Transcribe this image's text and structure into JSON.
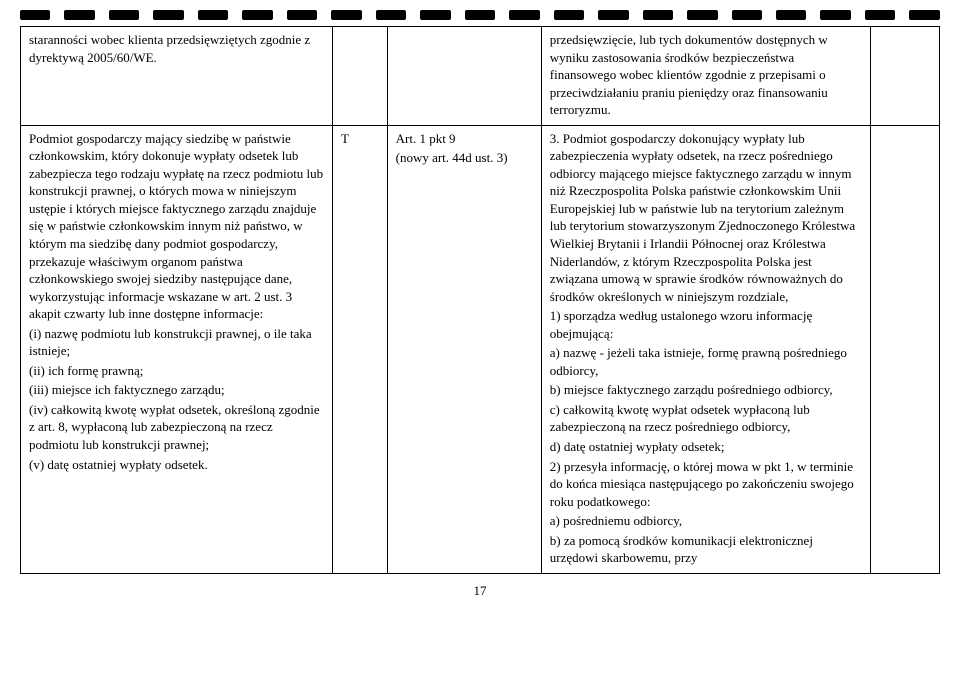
{
  "perforation_count": 21,
  "page_number": "17",
  "table": {
    "rows": [
      {
        "colA": "staranności wobec klienta przedsięwziętych zgodnie z dyrektywą 2005/60/WE.",
        "colB": "",
        "colC": "",
        "colD": "przedsięwzięcie, lub tych dokumentów dostępnych w wyniku zastosowania środków bezpieczeństwa finansowego wobec klientów zgodnie z przepisami o przeciwdziałaniu praniu pieniędzy oraz finansowaniu terroryzmu.",
        "colE": ""
      },
      {
        "colA": "Podmiot gospodarczy mający siedzibę w państwie członkowskim, który dokonuje wypłaty odsetek lub zabezpiecza tego rodzaju wypłatę na rzecz podmiotu lub konstrukcji prawnej, o których mowa w niniejszym ustępie i których miejsce faktycznego zarządu znajduje się w państwie członkowskim innym niż państwo, w którym ma siedzibę dany podmiot gospodarczy, przekazuje właściwym organom państwa członkowskiego swojej siedziby następujące dane, wykorzystując informacje wskazane w art. 2 ust. 3 akapit czwarty lub inne dostępne informacje:\n(i) nazwę podmiotu lub konstrukcji prawnej, o ile taka istnieje;\n(ii) ich formę prawną;\n(iii) miejsce ich faktycznego zarządu;\n(iv) całkowitą kwotę wypłat odsetek, określoną zgodnie z art. 8, wypłaconą lub zabezpieczoną na rzecz podmiotu lub konstrukcji prawnej;\n(v) datę ostatniej wypłaty odsetek.",
        "colB": "T",
        "colC": "Art. 1 pkt 9\n(nowy art. 44d ust. 3)",
        "colD": "3. Podmiot gospodarczy dokonujący wypłaty lub zabezpieczenia wypłaty odsetek, na rzecz pośredniego odbiorcy mającego miejsce faktycznego zarządu w innym niż Rzeczpospolita Polska państwie członkowskim Unii Europejskiej lub w państwie lub na terytorium zależnym lub terytorium stowarzyszonym Zjednoczonego Królestwa Wielkiej Brytanii i Irlandii Północnej oraz Królestwa Niderlandów, z którym Rzeczpospolita Polska jest związana umową w sprawie środków równoważnych do środków określonych w niniejszym rozdziale,\n1) sporządza według ustalonego wzoru informację obejmującą:\na) nazwę - jeżeli taka istnieje, formę prawną pośredniego odbiorcy,\nb) miejsce faktycznego zarządu pośredniego odbiorcy,\nc) całkowitą kwotę wypłat odsetek wypłaconą lub zabezpieczoną na rzecz pośredniego odbiorcy,\nd) datę ostatniej wypłaty odsetek;\n2) przesyła informację, o której mowa w pkt 1, w terminie do końca miesiąca następującego po zakończeniu swojego roku podatkowego:\na) pośredniemu odbiorcy,\nb) za pomocą środków komunikacji elektronicznej urzędowi skarbowemu, przy",
        "colE": ""
      }
    ]
  }
}
